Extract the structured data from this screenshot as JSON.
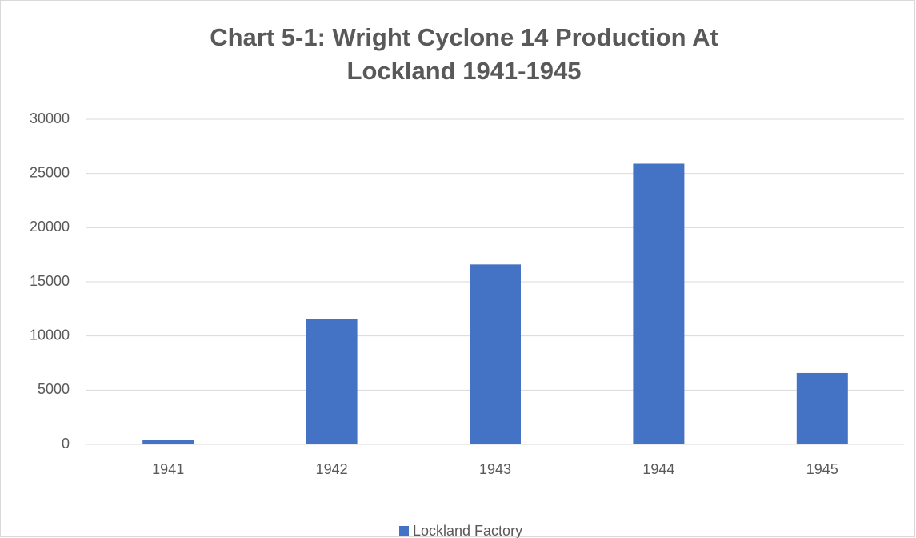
{
  "chart_data": {
    "type": "bar",
    "title": "Chart 5-1: Wright Cyclone 14 Production At Lockland 1941-1945",
    "categories": [
      "1941",
      "1942",
      "1943",
      "1944",
      "1945"
    ],
    "series": [
      {
        "name": "Lockland Factory",
        "color": "#4472c4",
        "values": [
          370,
          11600,
          16600,
          25900,
          6580
        ]
      }
    ],
    "ylim": [
      0,
      30000
    ],
    "yticks": [
      0,
      5000,
      10000,
      15000,
      20000,
      25000,
      30000
    ],
    "grid": true,
    "legend": "bottom"
  }
}
